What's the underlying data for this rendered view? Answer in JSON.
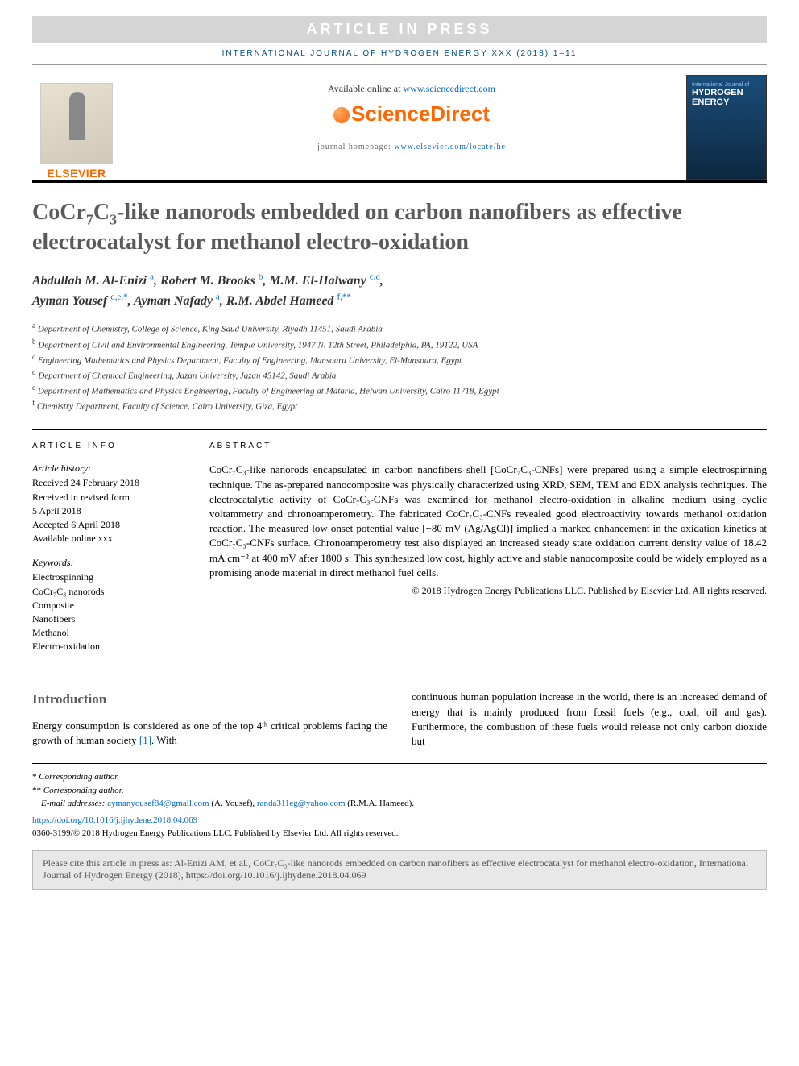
{
  "banner": {
    "text": "ARTICLE IN PRESS"
  },
  "journal_header": "INTERNATIONAL JOURNAL OF HYDROGEN ENERGY XXX (2018) 1–11",
  "header": {
    "available_prefix": "Available online at ",
    "available_link": "www.sciencedirect.com",
    "brand": "ScienceDirect",
    "homepage_prefix": "journal homepage: ",
    "homepage_link": "www.elsevier.com/locate/he",
    "publisher_name": "ELSEVIER",
    "cover_title": "HYDROGEN ENERGY",
    "cover_sub": "International Journal of"
  },
  "title": {
    "pre": "CoCr",
    "sub1": "7",
    "mid": "C",
    "sub2": "3",
    "post": "-like nanorods embedded on carbon nanofibers as effective electrocatalyst for methanol electro-oxidation"
  },
  "authors": [
    {
      "name": "Abdullah M. Al-Enizi",
      "aff": "a"
    },
    {
      "name": "Robert M. Brooks",
      "aff": "b"
    },
    {
      "name": "M.M. El-Halwany",
      "aff": "c,d"
    },
    {
      "name": "Ayman Yousef",
      "aff": "d,e,",
      "corr": "*"
    },
    {
      "name": "Ayman Nafady",
      "aff": "a"
    },
    {
      "name": "R.M. Abdel Hameed",
      "aff": "f,",
      "corr": "**"
    }
  ],
  "affiliations": [
    {
      "sup": "a",
      "text": "Department of Chemistry, College of Science, King Saud University, Riyadh 11451, Saudi Arabia"
    },
    {
      "sup": "b",
      "text": "Department of Civil and Environmental Engineering, Temple University, 1947 N. 12th Street, Philadelphia, PA, 19122, USA"
    },
    {
      "sup": "c",
      "text": "Engineering Mathematics and Physics Department, Faculty of Engineering, Mansoura University, El-Mansoura, Egypt"
    },
    {
      "sup": "d",
      "text": "Department of Chemical Engineering, Jazan University, Jazan 45142, Saudi Arabia"
    },
    {
      "sup": "e",
      "text": "Department of Mathematics and Physics Engineering, Faculty of Engineering at Mataria, Helwan University, Cairo 11718, Egypt"
    },
    {
      "sup": "f",
      "text": "Chemistry Department, Faculty of Science, Cairo University, Giza, Egypt"
    }
  ],
  "info": {
    "heading": "ARTICLE INFO",
    "history_label": "Article history:",
    "history": [
      "Received 24 February 2018",
      "Received in revised form",
      "5 April 2018",
      "Accepted 6 April 2018",
      "Available online xxx"
    ],
    "keywords_label": "Keywords:",
    "keywords": [
      "Electrospinning",
      "CoCr₇C₃ nanorods",
      "Composite",
      "Nanofibers",
      "Methanol",
      "Electro-oxidation"
    ]
  },
  "abstract": {
    "heading": "ABSTRACT",
    "body": "CoCr₇C₃-like nanorods encapsulated in carbon nanofibers shell [CoCr₇C₃-CNFs] were prepared using a simple electrospinning technique. The as-prepared nanocomposite was physically characterized using XRD, SEM, TEM and EDX analysis techniques. The electrocatalytic activity of CoCr₇C₃-CNFs was examined for methanol electro-oxidation in alkaline medium using cyclic voltammetry and chronoamperometry. The fabricated CoCr₇C₃-CNFs revealed good electroactivity towards methanol oxidation reaction. The measured low onset potential value [−80 mV (Ag/AgCl)] implied a marked enhancement in the oxidation kinetics at CoCr₇C₃-CNFs surface. Chronoamperometry test also displayed an increased steady state oxidation current density value of 18.42 mA cm⁻² at 400 mV after 1800 s. This synthesized low cost, highly active and stable nanocomposite could be widely employed as a promising anode material in direct methanol fuel cells.",
    "copyright": "© 2018 Hydrogen Energy Publications LLC. Published by Elsevier Ltd. All rights reserved."
  },
  "intro": {
    "heading": "Introduction",
    "col1": "Energy consumption is considered as one of the top 4ᵗʰ critical problems facing the growth of human society ",
    "ref1": "[1]",
    "col1_post": ". With",
    "col2": "continuous human population increase in the world, there is an increased demand of energy that is mainly produced from fossil fuels (e.g., coal, oil and gas). Furthermore, the combustion of these fuels would release not only carbon dioxide but"
  },
  "footnotes": {
    "corr1_mark": "*",
    "corr1": "Corresponding author.",
    "corr2_mark": "**",
    "corr2": "Corresponding author.",
    "email_label": "E-mail addresses: ",
    "email1": "aymanyousef84@gmail.com",
    "email1_name": " (A. Yousef), ",
    "email2": "randa311eg@yahoo.com",
    "email2_name": " (R.M.A. Hameed).",
    "doi": "https://doi.org/10.1016/j.ijhydene.2018.04.069",
    "issn_copyright": "0360-3199/© 2018 Hydrogen Energy Publications LLC. Published by Elsevier Ltd. All rights reserved."
  },
  "cite_box": "Please cite this article in press as: Al-Enizi AM, et al., CoCr₇C₃-like nanorods embedded on carbon nanofibers as effective electrocatalyst for methanol electro-oxidation, International Journal of Hydrogen Energy (2018), https://doi.org/10.1016/j.ijhydene.2018.04.069",
  "colors": {
    "banner_bg": "#d5d5d5",
    "banner_fg": "#ffffff",
    "link": "#0066cc",
    "brand_orange": "#ff6600",
    "title_gray": "#5a5a5a",
    "journal_blue": "#004b87",
    "citebox_bg": "#e8e8e8"
  }
}
